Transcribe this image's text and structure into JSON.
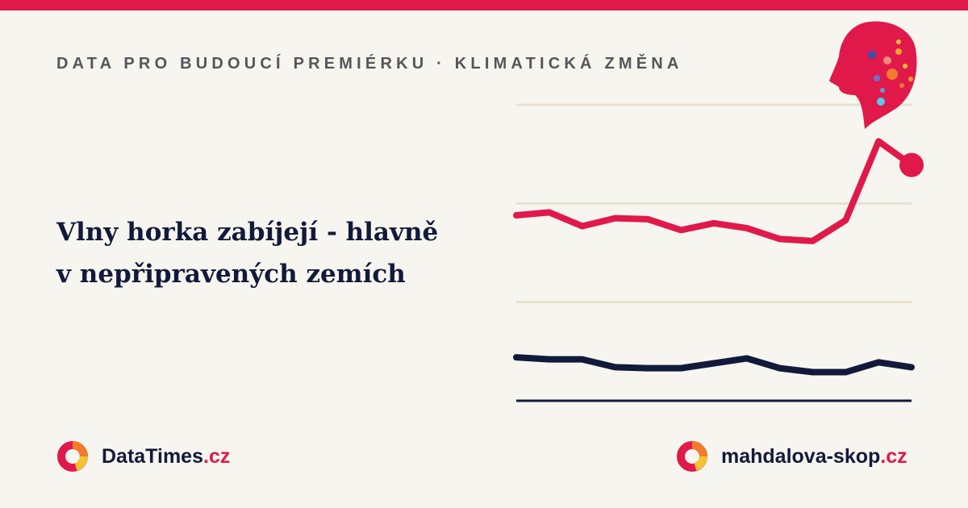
{
  "header": {
    "kicker": "DATA PRO BUDOUCÍ PREMIÉRKU · KLIMATICKÁ ZMĚNA"
  },
  "headline": {
    "lines": [
      "Vlny horka zabíjejí - hlavně",
      "v nepřipravených zemích"
    ]
  },
  "chart_data": {
    "type": "line",
    "categories": [
      null,
      null,
      null,
      null,
      null,
      null,
      null,
      null,
      null,
      null,
      null,
      null,
      null
    ],
    "series": [
      {
        "color": "#e0194a",
        "values": [
          1.88,
          1.91,
          1.77,
          1.85,
          1.84,
          1.73,
          1.8,
          1.75,
          1.64,
          1.62,
          1.83,
          2.63,
          2.39
        ],
        "end_marker": true
      },
      {
        "color": "#121a3b",
        "values": [
          0.44,
          0.42,
          0.42,
          0.34,
          0.33,
          0.33,
          0.38,
          0.43,
          0.33,
          0.29,
          0.29,
          0.39,
          0.34
        ],
        "end_marker": false
      }
    ],
    "ylim": [
      0,
      3
    ],
    "yticks": [
      1,
      2,
      3
    ],
    "grid": true
  },
  "footer": {
    "left": {
      "name": "DataTimes",
      "tld": ".cz"
    },
    "right": {
      "name": "mahdalova-skop",
      "tld": ".cz"
    }
  }
}
